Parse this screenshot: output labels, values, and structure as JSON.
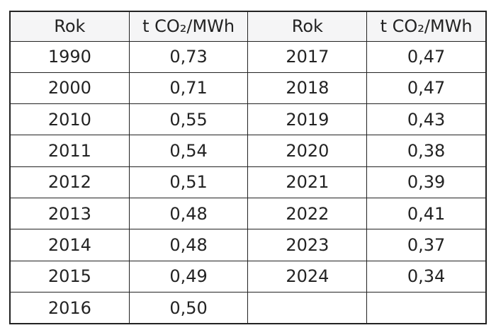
{
  "page": {
    "background": "#ffffff"
  },
  "table": {
    "name": "co2-emission-factor-table",
    "headers": [
      "Rok",
      "t CO₂/MWh",
      "Rok",
      "t CO₂/MWh"
    ],
    "rows": [
      [
        "1990",
        "0,73",
        "2017",
        "0,47"
      ],
      [
        "2000",
        "0,71",
        "2018",
        "0,47"
      ],
      [
        "2010",
        "0,55",
        "2019",
        "0,43"
      ],
      [
        "2011",
        "0,54",
        "2020",
        "0,38"
      ],
      [
        "2012",
        "0,51",
        "2021",
        "0,39"
      ],
      [
        "2013",
        "0,48",
        "2022",
        "0,41"
      ],
      [
        "2014",
        "0,48",
        "2023",
        "0,37"
      ],
      [
        "2015",
        "0,49",
        "2024",
        "0,34"
      ],
      [
        "2016",
        "0,50",
        "",
        ""
      ]
    ],
    "colors": {
      "header_bg": "#f5f5f6",
      "body_bg": "#ffffff",
      "border": "#222222",
      "text": "#232323"
    }
  }
}
